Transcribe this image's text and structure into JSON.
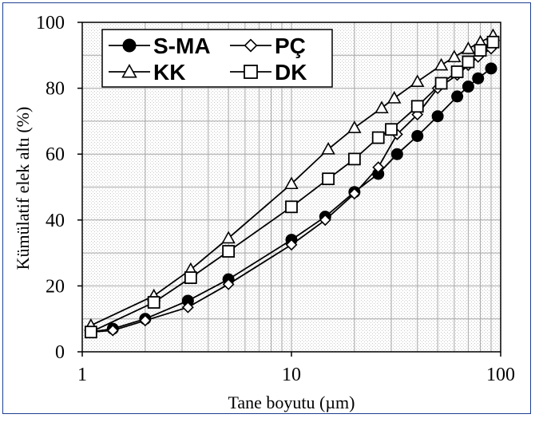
{
  "chart_data": {
    "type": "scatter",
    "xscale": "log",
    "xlim": [
      1,
      100
    ],
    "ylim": [
      0,
      100
    ],
    "xlabel": "Tane boyutu (µm)",
    "ylabel": "Kümülatif elek altı (%)",
    "x_ticks": [
      "1",
      "10",
      "100"
    ],
    "y_ticks": [
      "0",
      "20",
      "40",
      "60",
      "80",
      "100"
    ],
    "grid": true,
    "legend_position": "top-left",
    "series": [
      {
        "name": "S-MA",
        "marker": "circle-filled",
        "color": "#000000",
        "x": [
          1.1,
          1.4,
          2.0,
          3.2,
          5.0,
          10,
          14.5,
          20,
          26,
          32,
          40,
          50,
          62,
          70,
          78,
          90
        ],
        "y": [
          6,
          7,
          10,
          15.5,
          22,
          34,
          41,
          48.5,
          54,
          60,
          65.5,
          71.5,
          77.5,
          80.5,
          83,
          86
        ]
      },
      {
        "name": "PÇ",
        "marker": "diamond-open",
        "color": "#000000",
        "x": [
          1.1,
          1.4,
          2.0,
          3.2,
          5.0,
          10,
          14.5,
          20,
          26,
          32,
          40,
          50,
          62,
          70,
          78,
          90
        ],
        "y": [
          6,
          6.5,
          9.5,
          13.5,
          20.5,
          32.5,
          40,
          48,
          56,
          66,
          72,
          80,
          84,
          87,
          89.5,
          92
        ]
      },
      {
        "name": "KK",
        "marker": "triangle-open",
        "color": "#000000",
        "x": [
          1.1,
          2.2,
          3.3,
          5.0,
          10,
          15,
          20,
          27,
          31,
          40,
          52,
          60,
          70,
          80,
          92
        ],
        "y": [
          8,
          17,
          25,
          34.5,
          51,
          61.5,
          68,
          74,
          77,
          82,
          87,
          89.5,
          92,
          94,
          96
        ]
      },
      {
        "name": "DK",
        "marker": "square-open",
        "color": "#000000",
        "x": [
          1.1,
          2.2,
          3.3,
          5.0,
          10,
          15,
          20,
          26,
          30,
          40,
          52,
          62,
          70,
          80,
          92
        ],
        "y": [
          6,
          15,
          22.5,
          30.5,
          44,
          52.5,
          58.5,
          65,
          67.5,
          74.5,
          81.5,
          85,
          88,
          91.5,
          94
        ]
      }
    ]
  }
}
